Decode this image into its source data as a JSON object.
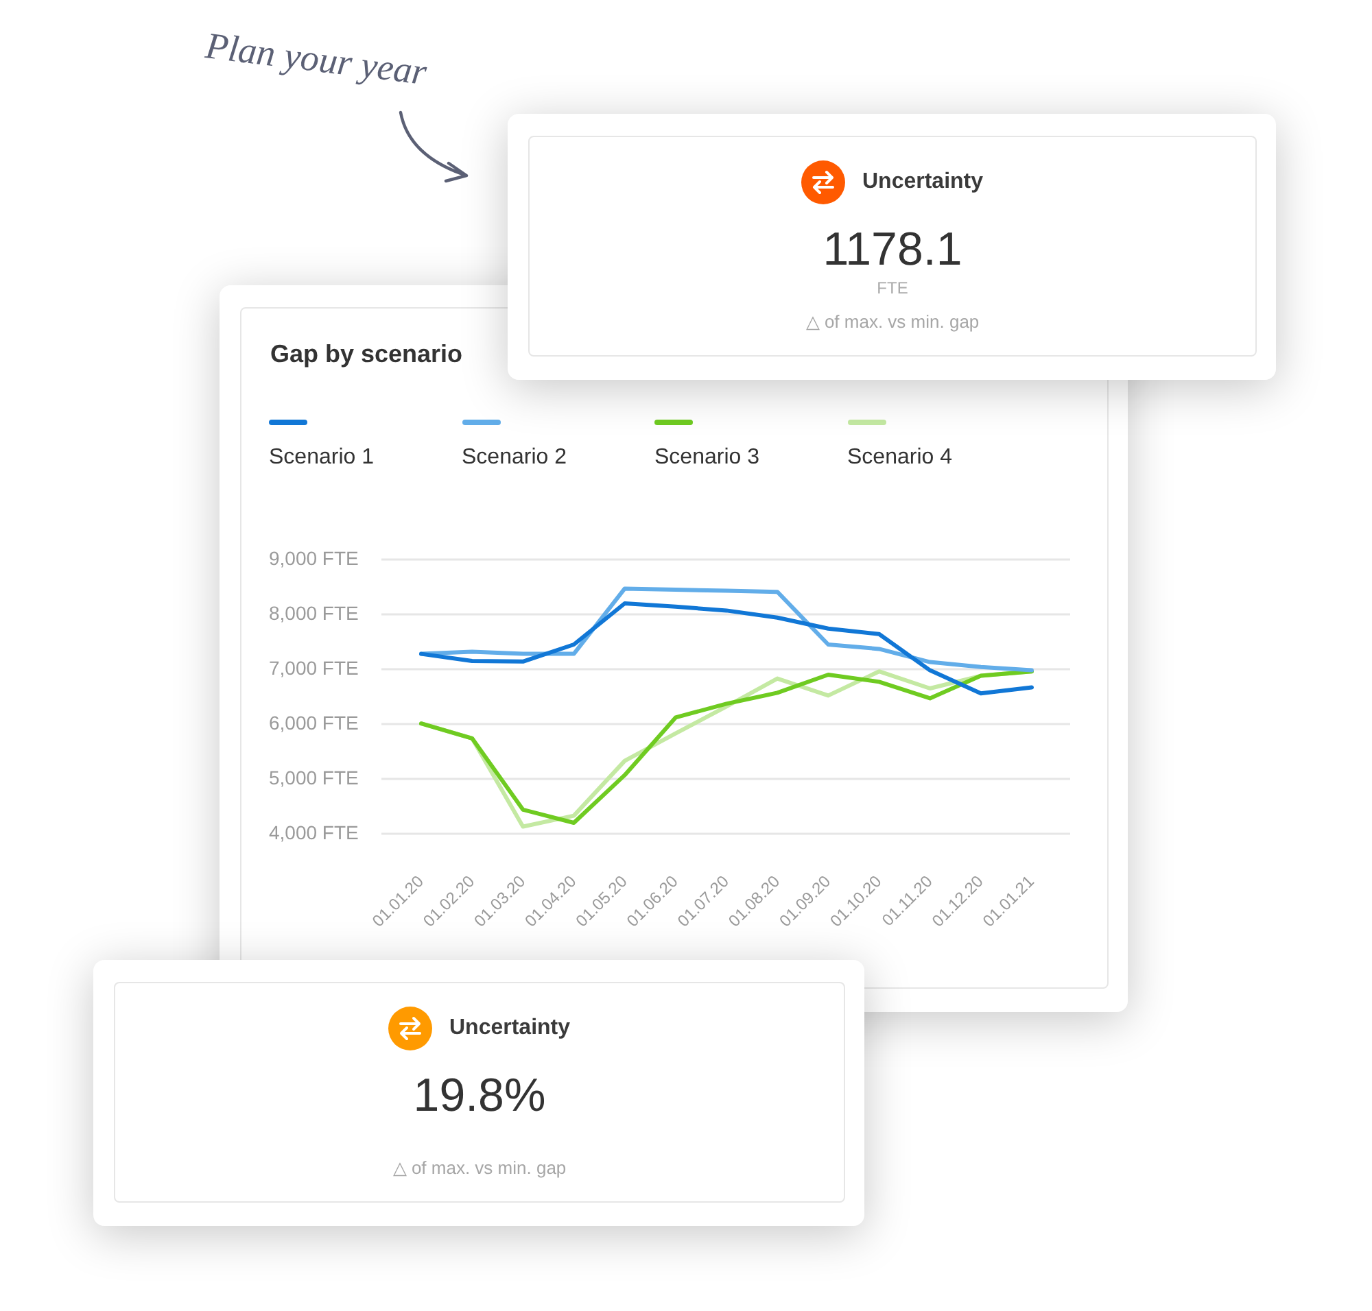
{
  "chart_data": [
    {
      "type": "other",
      "annotations": [
        "Plan your year"
      ]
    },
    {
      "type": "other",
      "title": "Uncertainty",
      "subtitle": "1178.1",
      "annotations": [
        "FTE",
        "△ of max. vs min. gap"
      ]
    },
    {
      "type": "line",
      "title": "Gap by scenario",
      "categories": [
        "01.01.20",
        "01.02.20",
        "01.03.20",
        "01.04.20",
        "01.05.20",
        "01.06.20",
        "01.07.20",
        "01.08.20",
        "01.09.20",
        "01.10.20",
        "01.11.20",
        "01.12.20",
        "01.01.21"
      ],
      "series": [
        {
          "name": "Scenario 1",
          "color": "#1177d6",
          "values": [
            7280,
            7150,
            7140,
            7450,
            8200,
            8140,
            8070,
            7940,
            7740,
            7640,
            6980,
            6560,
            6670
          ]
        },
        {
          "name": "Scenario 2",
          "color": "#62ade9",
          "values": [
            7280,
            7320,
            7280,
            7280,
            8470,
            8450,
            8430,
            8410,
            7450,
            7370,
            7130,
            7040,
            6980
          ]
        },
        {
          "name": "Scenario 3",
          "color": "#6fcb21",
          "values": [
            6010,
            5740,
            4440,
            4200,
            5070,
            6120,
            6370,
            6570,
            6900,
            6770,
            6470,
            6880,
            6960
          ]
        },
        {
          "name": "Scenario 4",
          "color": "#c4e9a2",
          "values": [
            6010,
            5740,
            4130,
            4330,
            5330,
            5830,
            6320,
            6830,
            6520,
            6960,
            6650,
            6880,
            6960
          ]
        }
      ],
      "ylim": [
        4000,
        9000
      ],
      "yticks": [
        {
          "value": 4000,
          "label": "4,000 FTE"
        },
        {
          "value": 5000,
          "label": "5,000 FTE"
        },
        {
          "value": 6000,
          "label": "6,000 FTE"
        },
        {
          "value": 7000,
          "label": "7,000 FTE"
        },
        {
          "value": 8000,
          "label": "8,000 FTE"
        },
        {
          "value": 9000,
          "label": "9,000 FTE"
        }
      ],
      "grid": "y",
      "legend": "top"
    },
    {
      "type": "other",
      "title": "Uncertainty",
      "subtitle": "19.8%",
      "annotations": [
        "△ of max. vs min. gap"
      ]
    }
  ]
}
